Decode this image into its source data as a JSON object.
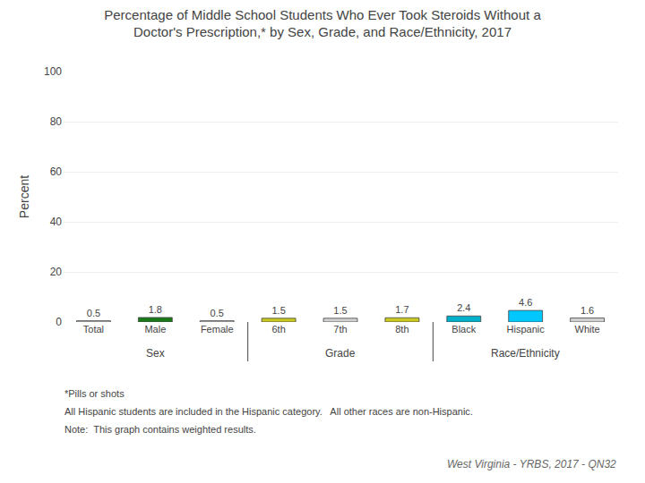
{
  "chart_data": {
    "type": "bar",
    "title": "Percentage of Middle School Students Who Ever Took Steroids Without a\nDoctor's Prescription,* by Sex, Grade, and Race/Ethnicity, 2017",
    "ylabel": "Percent",
    "categories": [
      "Total",
      "Male",
      "Female",
      "6th",
      "7th",
      "8th",
      "Black",
      "Hispanic",
      "White"
    ],
    "values": [
      0.5,
      1.8,
      0.5,
      1.5,
      1.5,
      1.7,
      2.4,
      4.6,
      1.6
    ],
    "colors": [
      "#d0d0d0",
      "#1a7a1a",
      "#d0d0d0",
      "#c8c820",
      "#d0d0d0",
      "#c8c820",
      "#00b0c8",
      "#00c8ff",
      "#d0d0d0"
    ],
    "ylim": [
      0,
      100
    ],
    "yticks": [
      0,
      20,
      40,
      60,
      80,
      100
    ],
    "grid": true,
    "data_labels": true,
    "section_labels": [
      "Sex",
      "Grade",
      "Race/Ethnicity"
    ],
    "footnotes": [
      "*Pills or shots",
      "All Hispanic students are included in the Hispanic category.   All other races are non-Hispanic.",
      "Note:  This graph contains weighted results."
    ],
    "source": "West Virginia - YRBS, 2017 - QN32"
  }
}
